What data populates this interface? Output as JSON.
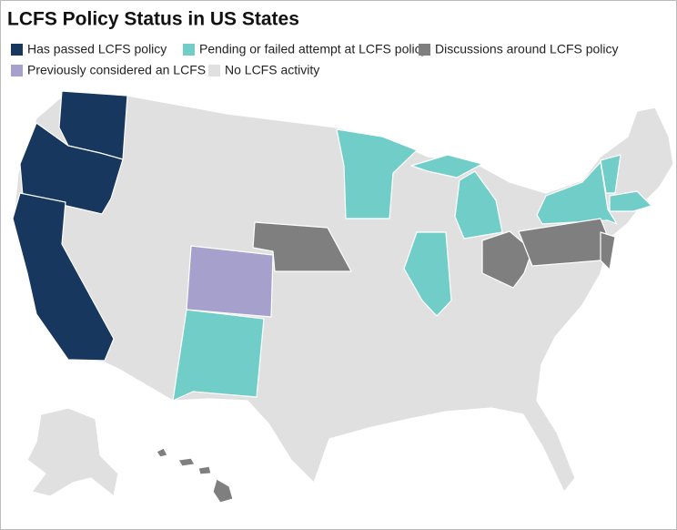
{
  "title": "LCFS Policy Status in US States",
  "legend": [
    {
      "label": "Has passed LCFS policy",
      "color": "#17375e"
    },
    {
      "label": "Pending or failed attempt at LCFS policy",
      "color": "#70cdc8"
    },
    {
      "label": "Discussions around LCFS policy",
      "color": "#7f7f7f"
    },
    {
      "label": "Previously considered an LCFS",
      "color": "#a6a0cc"
    },
    {
      "label": "No LCFS activity",
      "color": "#e0e0e0"
    }
  ]
}
